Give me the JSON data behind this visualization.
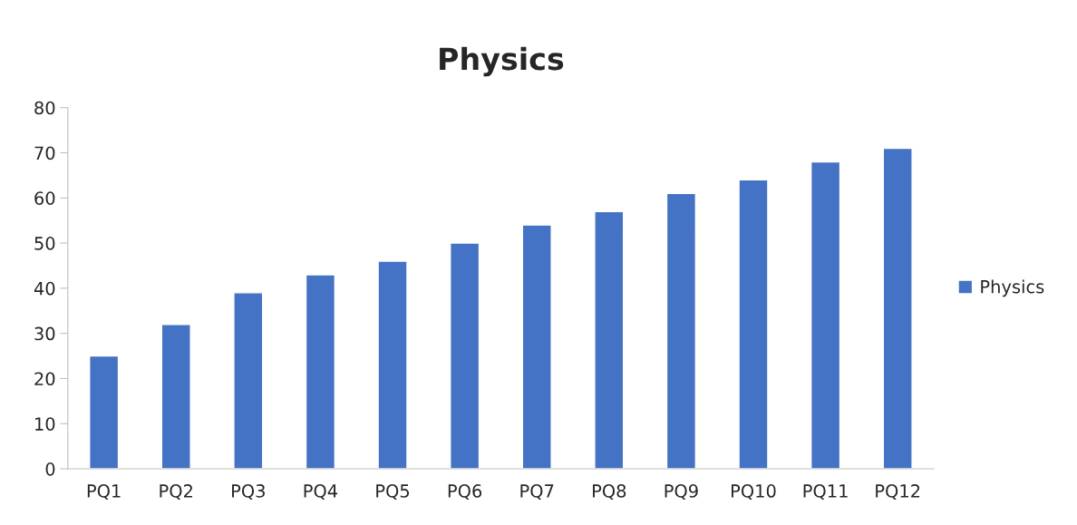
{
  "chart_data": {
    "type": "bar",
    "title": "Physics",
    "categories": [
      "PQ1",
      "PQ2",
      "PQ3",
      "PQ4",
      "PQ5",
      "PQ6",
      "PQ7",
      "PQ8",
      "PQ9",
      "PQ10",
      "PQ11",
      "PQ12"
    ],
    "series": [
      {
        "name": "Physics",
        "color": "#4472c4",
        "values": [
          25,
          32,
          39,
          43,
          46,
          50,
          54,
          57,
          61,
          64,
          68,
          71
        ]
      }
    ],
    "ylim": [
      0,
      80
    ],
    "yticks": [
      0,
      10,
      20,
      30,
      40,
      50,
      60,
      70,
      80
    ],
    "grid": false,
    "legend": "right"
  }
}
